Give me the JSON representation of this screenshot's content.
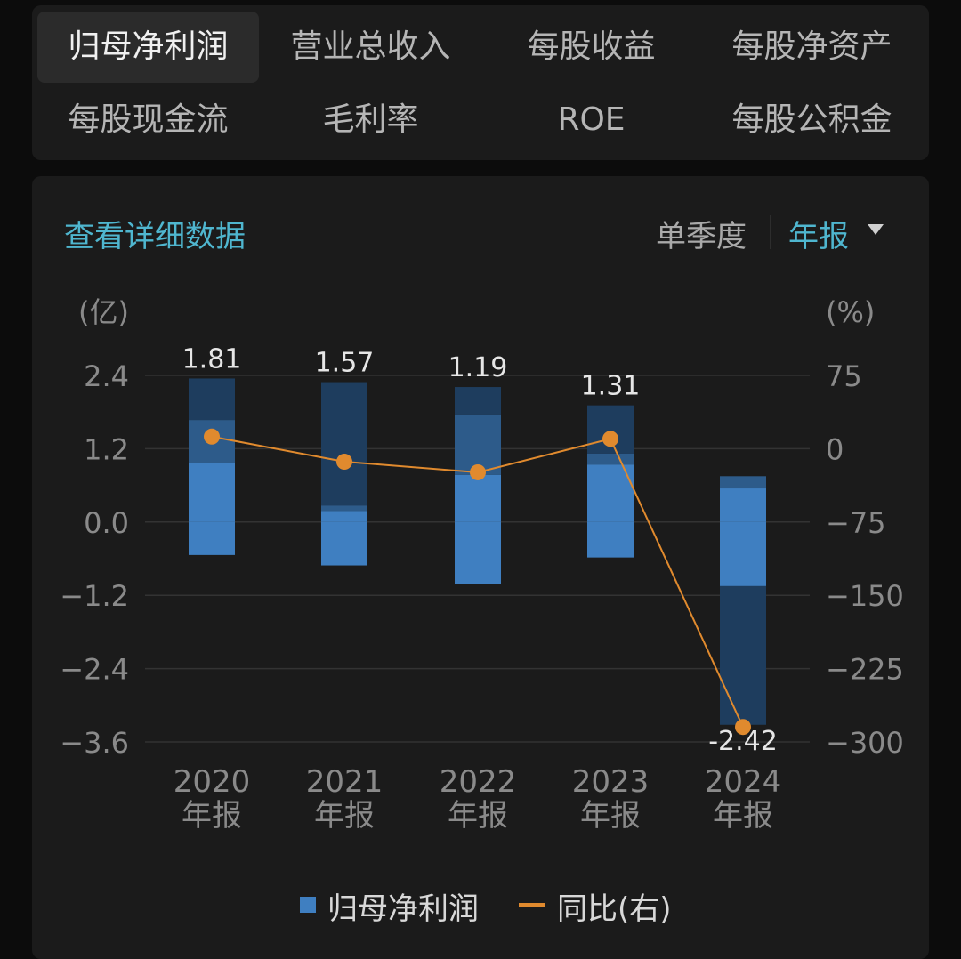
{
  "tabs": [
    {
      "label": "归母净利润",
      "active": true
    },
    {
      "label": "营业总收入",
      "active": false
    },
    {
      "label": "每股收益",
      "active": false
    },
    {
      "label": "每股净资产",
      "active": false
    },
    {
      "label": "每股现金流",
      "active": false
    },
    {
      "label": "毛利率",
      "active": false
    },
    {
      "label": "ROE",
      "active": false
    },
    {
      "label": "每股公积金",
      "active": false
    }
  ],
  "header": {
    "detail_link": "查看详细数据",
    "period_single": "单季度",
    "period_annual": "年报"
  },
  "colors": {
    "accent": "#4fb6cf",
    "bar": "#3f7fc1",
    "bar_dark": "#1e3d5e",
    "line": "#e08a2e"
  },
  "chart_data": {
    "type": "bar",
    "left_axis_unit": "(亿)",
    "right_axis_unit": "(%)",
    "y_ticks": [
      "2.4",
      "1.2",
      "0.0",
      "−1.2",
      "−2.4",
      "−3.6"
    ],
    "y_lim": [
      -3.6,
      2.4
    ],
    "y2_ticks": [
      "75",
      "0",
      "−75",
      "−150",
      "−225",
      "−300"
    ],
    "y2_lim": [
      -300,
      75
    ],
    "categories": [
      {
        "year": "2020",
        "label": "年报"
      },
      {
        "year": "2021",
        "label": "年报"
      },
      {
        "year": "2022",
        "label": "年报"
      },
      {
        "year": "2023",
        "label": "年报"
      },
      {
        "year": "2024",
        "label": "年报"
      }
    ],
    "series": [
      {
        "name": "归母净利润",
        "type": "bar",
        "values": [
          1.81,
          1.57,
          1.19,
          1.31,
          -2.42
        ],
        "value_labels": [
          "1.81",
          "1.57",
          "1.19",
          "1.31",
          "-2.42"
        ]
      },
      {
        "name": "同比(右)",
        "type": "line",
        "axis": "right",
        "values": [
          12.4,
          -13.3,
          -24.2,
          10.1,
          -284.7
        ]
      }
    ],
    "bar_segments": [
      [
        {
          "from": 2.35,
          "to": 1.67,
          "shade": "dark"
        },
        {
          "from": 1.67,
          "to": 0.97,
          "shade": "mid"
        },
        {
          "from": 0.97,
          "to": 0,
          "shade": "light"
        },
        {
          "from": 0,
          "to": -0.54,
          "shade": "light"
        }
      ],
      [
        {
          "from": 2.29,
          "to": 0.27,
          "shade": "dark"
        },
        {
          "from": 0.27,
          "to": 0.18,
          "shade": "mid"
        },
        {
          "from": 0.18,
          "to": 0,
          "shade": "light"
        },
        {
          "from": 0,
          "to": -0.71,
          "shade": "light"
        }
      ],
      [
        {
          "from": 2.21,
          "to": 1.76,
          "shade": "dark"
        },
        {
          "from": 1.76,
          "to": 0.77,
          "shade": "mid"
        },
        {
          "from": 0.77,
          "to": 0,
          "shade": "light"
        },
        {
          "from": 0,
          "to": -1.02,
          "shade": "light"
        }
      ],
      [
        {
          "from": 1.91,
          "to": 1.12,
          "shade": "dark"
        },
        {
          "from": 1.12,
          "to": 0.94,
          "shade": "mid"
        },
        {
          "from": 0.94,
          "to": 0,
          "shade": "light"
        },
        {
          "from": 0,
          "to": -0.58,
          "shade": "light"
        }
      ],
      [
        {
          "from": 0.75,
          "to": 0.55,
          "shade": "mid"
        },
        {
          "from": 0.55,
          "to": 0,
          "shade": "light"
        },
        {
          "from": 0,
          "to": -1.05,
          "shade": "light"
        },
        {
          "from": -1.05,
          "to": -3.32,
          "shade": "dark"
        }
      ]
    ],
    "legend": [
      {
        "name": "归母净利润",
        "kind": "bar"
      },
      {
        "name": "同比(右)",
        "kind": "line"
      }
    ],
    "grid": true
  }
}
